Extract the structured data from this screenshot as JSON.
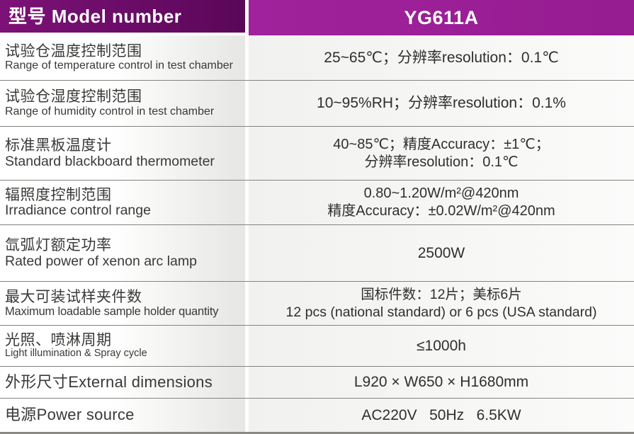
{
  "header": {
    "model_label": "型号 Model number",
    "model_value": "YG611A"
  },
  "rows": [
    {
      "zh": "试验仓温度控制范围",
      "en": "Range of temperature control in test chamber",
      "value": "25~65℃；分辨率resolution：0.1℃"
    },
    {
      "zh": "试验仓湿度控制范围",
      "en": "Range of humidity control in test chamber",
      "value": "10~95%RH；分辨率resolution：0.1%"
    },
    {
      "zh": "标准黑板温度计",
      "en": "Standard blackboard thermometer",
      "value": "40~85℃；精度Accuracy：±1℃；",
      "value2": "分辨率resolution：0.1℃"
    },
    {
      "zh": "辐照度控制范围",
      "en": "Irradiance control range",
      "value": "0.80~1.20W/m²@420nm",
      "value2": "精度Accuracy：±0.02W/m²@420nm"
    },
    {
      "zh": "氙弧灯额定功率",
      "en": "Rated power of xenon arc lamp",
      "value": "2500W"
    },
    {
      "zh": "最大可装试样夹件数",
      "en": "Maximum loadable sample holder quantity",
      "value": "国标件数：12片；美标6片",
      "value2": "12 pcs (national standard) or 6 pcs (USA standard)"
    },
    {
      "zh": "光照、喷淋周期",
      "en": "Light illumination & Spray cycle",
      "value": "≤1000h"
    },
    {
      "zh": "外形尺寸External dimensions",
      "value": "L920 × W650 × H1680mm"
    },
    {
      "zh": "电源Power source",
      "value": "AC220V   50Hz   6.5KW"
    }
  ],
  "colors": {
    "header_left_bg": "#6b0c69",
    "header_right_bg": "#9c1e98",
    "divider": "#85837e",
    "label_text": "#393937",
    "value_text": "#2f2f2d"
  }
}
